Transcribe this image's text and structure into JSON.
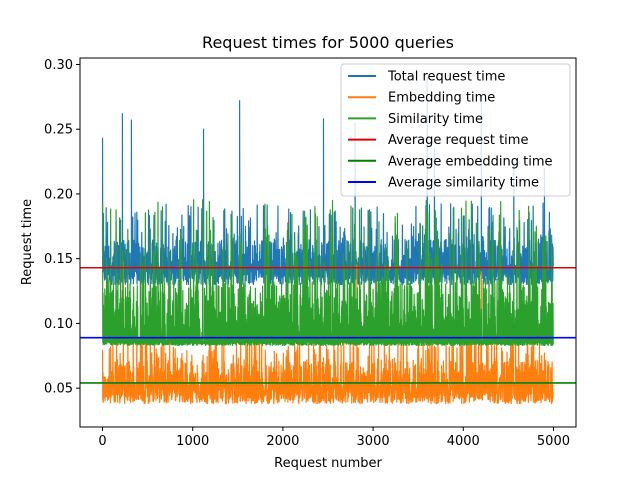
{
  "chart_data": {
    "type": "line",
    "title": "Request times for 5000 queries",
    "xlabel": "Request number",
    "ylabel": "Request time",
    "xlim": [
      -250,
      5250
    ],
    "ylim": [
      0.02,
      0.305
    ],
    "xticks": [
      0,
      1000,
      2000,
      3000,
      4000,
      5000
    ],
    "yticks": [
      0.05,
      0.1,
      0.15,
      0.2,
      0.25,
      0.3
    ],
    "ytick_labels": [
      "0.05",
      "0.10",
      "0.15",
      "0.20",
      "0.25",
      "0.30"
    ],
    "grid": false,
    "legend_position": "top-right",
    "n_points": 5000,
    "series": [
      {
        "name": "Total request time",
        "color": "#1f77b4",
        "kind": "noisy",
        "baseline": 0.145,
        "typical_low": 0.13,
        "typical_high": 0.165,
        "peaks": [
          [
            0,
            0.243
          ],
          [
            220,
            0.262
          ],
          [
            320,
            0.257
          ],
          [
            1120,
            0.25
          ],
          [
            1520,
            0.272
          ],
          [
            2450,
            0.258
          ],
          [
            2800,
            0.255
          ],
          [
            3600,
            0.29
          ],
          [
            3680,
            0.235
          ],
          [
            4200,
            0.271
          ],
          [
            4560,
            0.225
          ],
          [
            4900,
            0.22
          ]
        ]
      },
      {
        "name": "Embedding time",
        "color": "#ff7f0e",
        "kind": "noisy",
        "baseline": 0.055,
        "typical_low": 0.038,
        "typical_high": 0.072,
        "peaks": [
          [
            230,
            0.148
          ],
          [
            1530,
            0.157
          ],
          [
            2820,
            0.145
          ],
          [
            4200,
            0.14
          ],
          [
            1260,
            0.13
          ],
          [
            280,
            0.135
          ]
        ]
      },
      {
        "name": "Similarity time",
        "color": "#2ca02c",
        "kind": "noisy",
        "baseline": 0.086,
        "typical_low": 0.083,
        "typical_high": 0.132,
        "peaks": [
          [
            0,
            0.192
          ],
          [
            1520,
            0.165
          ],
          [
            2420,
            0.152
          ],
          [
            4180,
            0.151
          ],
          [
            2800,
            0.148
          ]
        ]
      },
      {
        "name": "Average request time",
        "color": "#e00000",
        "kind": "hline",
        "value": 0.143
      },
      {
        "name": "Average embedding time",
        "color": "#008000",
        "kind": "hline",
        "value": 0.054
      },
      {
        "name": "Average similarity time",
        "color": "#0000ff",
        "kind": "hline",
        "value": 0.089
      }
    ]
  }
}
